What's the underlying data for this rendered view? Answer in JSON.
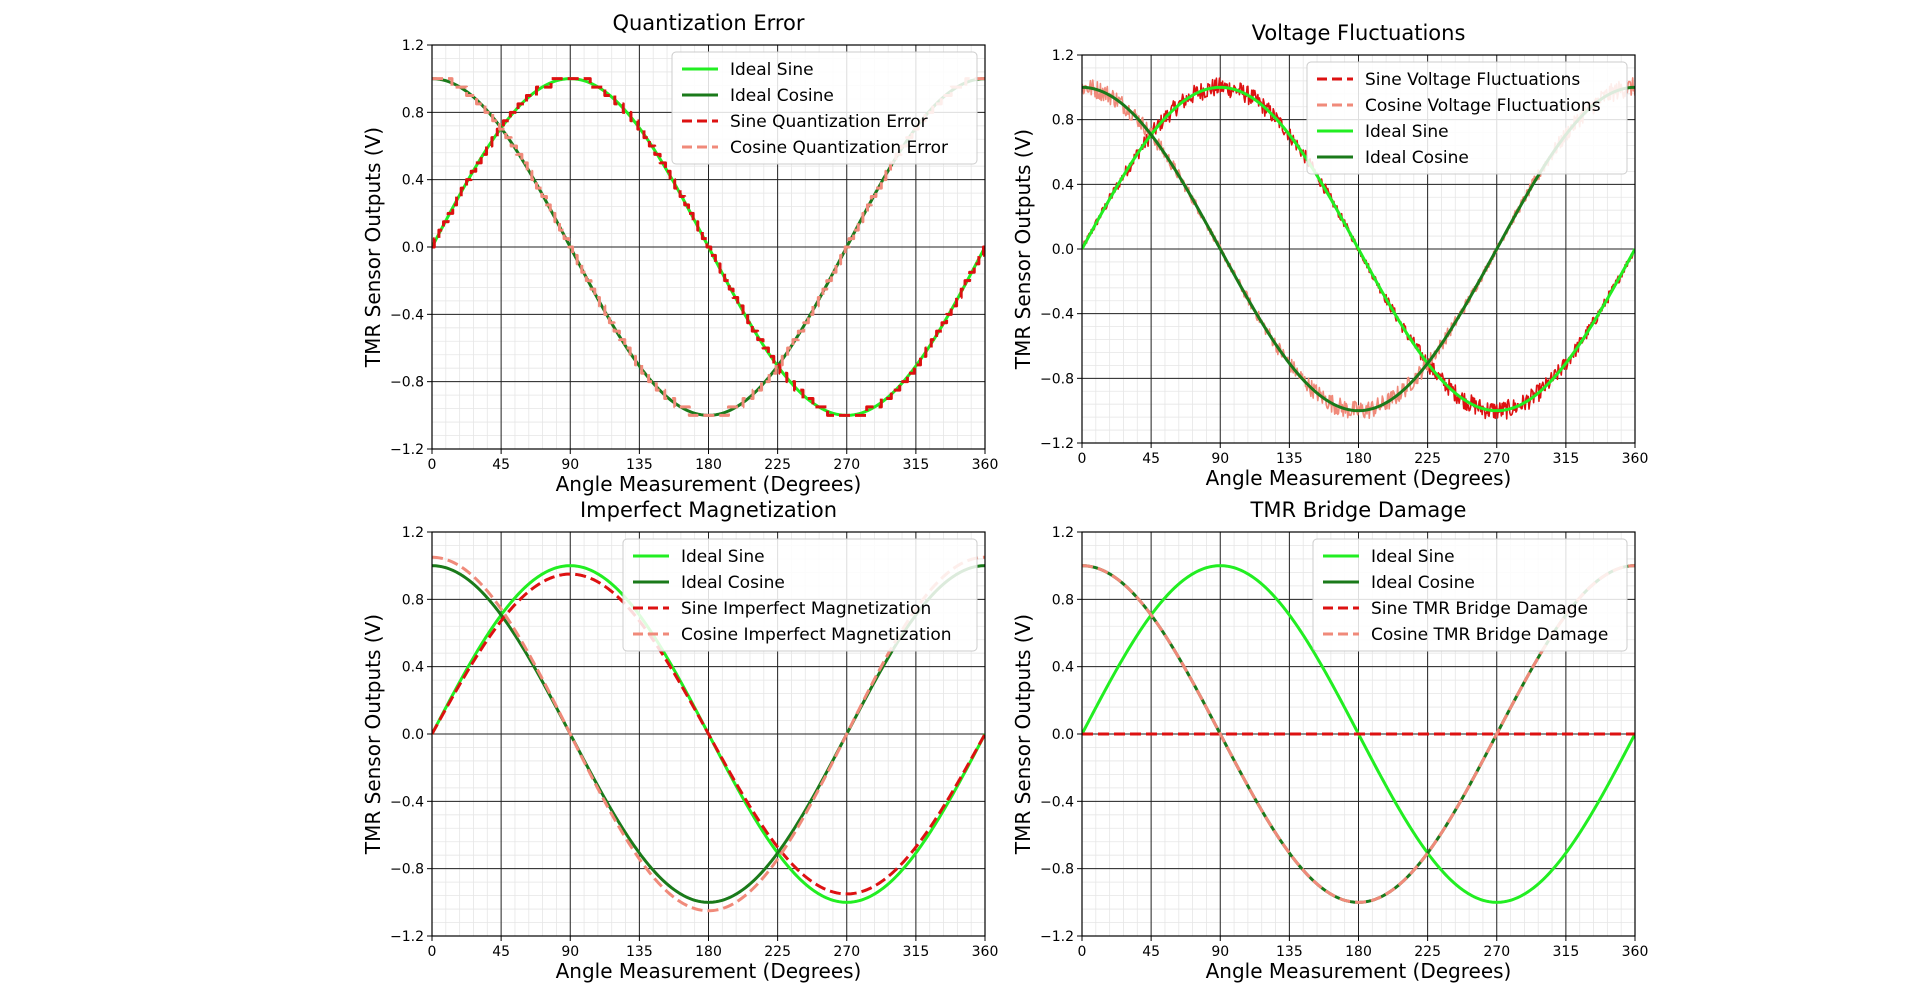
{
  "chart_data": [
    {
      "type": "line",
      "title": "Quantization Error",
      "xlabel": "Angle Measurement (Degrees)",
      "ylabel": "TMR Sensor Outputs (V)",
      "xlim": [
        0,
        360
      ],
      "ylim": [
        -1.2,
        1.2
      ],
      "xticks": [
        "0",
        "45",
        "90",
        "135",
        "180",
        "225",
        "270",
        "315",
        "360"
      ],
      "yticks": [
        "−1.2",
        "−0.8",
        "−0.4",
        "0.0",
        "0.4",
        "0.8",
        "1.2"
      ],
      "grid": true,
      "legend_position": "top-right",
      "series": [
        {
          "name": "Ideal Sine",
          "kind": "sin",
          "amplitude": 1.0,
          "offset": 0,
          "color": "#22ee22",
          "style": "solid"
        },
        {
          "name": "Ideal Cosine",
          "kind": "cos",
          "amplitude": 1.0,
          "offset": 0,
          "color": "#1a7a1a",
          "style": "solid"
        },
        {
          "name": "Sine Quantization Error",
          "kind": "sin",
          "amplitude": 1.0,
          "offset": 0,
          "quantization_step": 0.05,
          "color": "#dd1111",
          "style": "dashed"
        },
        {
          "name": "Cosine Quantization Error",
          "kind": "cos",
          "amplitude": 1.0,
          "offset": 0,
          "quantization_step": 0.05,
          "color": "#f08a7a",
          "style": "dashed"
        }
      ]
    },
    {
      "type": "line",
      "title": "Voltage Fluctuations",
      "xlabel": "Angle Measurement (Degrees)",
      "ylabel": "TMR Sensor Outputs (V)",
      "xlim": [
        0,
        360
      ],
      "ylim": [
        -1.2,
        1.2
      ],
      "xticks": [
        "0",
        "45",
        "90",
        "135",
        "180",
        "225",
        "270",
        "315",
        "360"
      ],
      "yticks": [
        "−1.2",
        "−0.8",
        "−0.4",
        "0.0",
        "0.4",
        "0.8",
        "1.2"
      ],
      "grid": true,
      "legend_position": "top-right",
      "series": [
        {
          "name": "Sine Voltage Fluctuations",
          "kind": "sin",
          "amplitude": 1.0,
          "offset": 0,
          "noise": 0.06,
          "color": "#dd1111",
          "style": "noisy"
        },
        {
          "name": "Cosine Voltage Fluctuations",
          "kind": "cos",
          "amplitude": 1.0,
          "offset": 0,
          "noise": 0.06,
          "color": "#f08a7a",
          "style": "noisy"
        },
        {
          "name": "Ideal Sine",
          "kind": "sin",
          "amplitude": 1.0,
          "offset": 0,
          "color": "#22ee22",
          "style": "solid"
        },
        {
          "name": "Ideal Cosine",
          "kind": "cos",
          "amplitude": 1.0,
          "offset": 0,
          "color": "#1a7a1a",
          "style": "solid"
        }
      ]
    },
    {
      "type": "line",
      "title": "Imperfect Magnetization",
      "xlabel": "Angle Measurement (Degrees)",
      "ylabel": "TMR Sensor Outputs (V)",
      "xlim": [
        0,
        360
      ],
      "ylim": [
        -1.2,
        1.2
      ],
      "xticks": [
        "0",
        "45",
        "90",
        "135",
        "180",
        "225",
        "270",
        "315",
        "360"
      ],
      "yticks": [
        "−1.2",
        "−0.8",
        "−0.4",
        "0.0",
        "0.4",
        "0.8",
        "1.2"
      ],
      "grid": true,
      "legend_position": "top-right",
      "series": [
        {
          "name": "Ideal Sine",
          "kind": "sin",
          "amplitude": 1.0,
          "offset": 0,
          "color": "#22ee22",
          "style": "solid"
        },
        {
          "name": "Ideal Cosine",
          "kind": "cos",
          "amplitude": 1.0,
          "offset": 0,
          "color": "#1a7a1a",
          "style": "solid"
        },
        {
          "name": "Sine Imperfect Magnetization",
          "kind": "sin",
          "amplitude": 0.95,
          "offset": 0,
          "color": "#dd1111",
          "style": "dashed"
        },
        {
          "name": "Cosine Imperfect Magnetization",
          "kind": "cos",
          "amplitude": 1.05,
          "offset": 0,
          "color": "#f08a7a",
          "style": "dashed"
        }
      ]
    },
    {
      "type": "line",
      "title": "TMR Bridge Damage",
      "xlabel": "Angle Measurement (Degrees)",
      "ylabel": "TMR Sensor Outputs (V)",
      "xlim": [
        0,
        360
      ],
      "ylim": [
        -1.2,
        1.2
      ],
      "xticks": [
        "0",
        "45",
        "90",
        "135",
        "180",
        "225",
        "270",
        "315",
        "360"
      ],
      "yticks": [
        "−1.2",
        "−0.8",
        "−0.4",
        "0.0",
        "0.4",
        "0.8",
        "1.2"
      ],
      "grid": true,
      "legend_position": "top-right",
      "series": [
        {
          "name": "Ideal Sine",
          "kind": "sin",
          "amplitude": 1.0,
          "offset": 0,
          "color": "#22ee22",
          "style": "solid"
        },
        {
          "name": "Ideal Cosine",
          "kind": "cos",
          "amplitude": 1.0,
          "offset": 0,
          "color": "#1a7a1a",
          "style": "solid"
        },
        {
          "name": "Sine TMR Bridge Damage",
          "kind": "zero",
          "amplitude": 0,
          "offset": 0,
          "color": "#dd1111",
          "style": "dashed"
        },
        {
          "name": "Cosine TMR Bridge Damage",
          "kind": "cos",
          "amplitude": 1.0,
          "offset": 0,
          "color": "#f08a7a",
          "style": "dashed"
        }
      ]
    }
  ]
}
